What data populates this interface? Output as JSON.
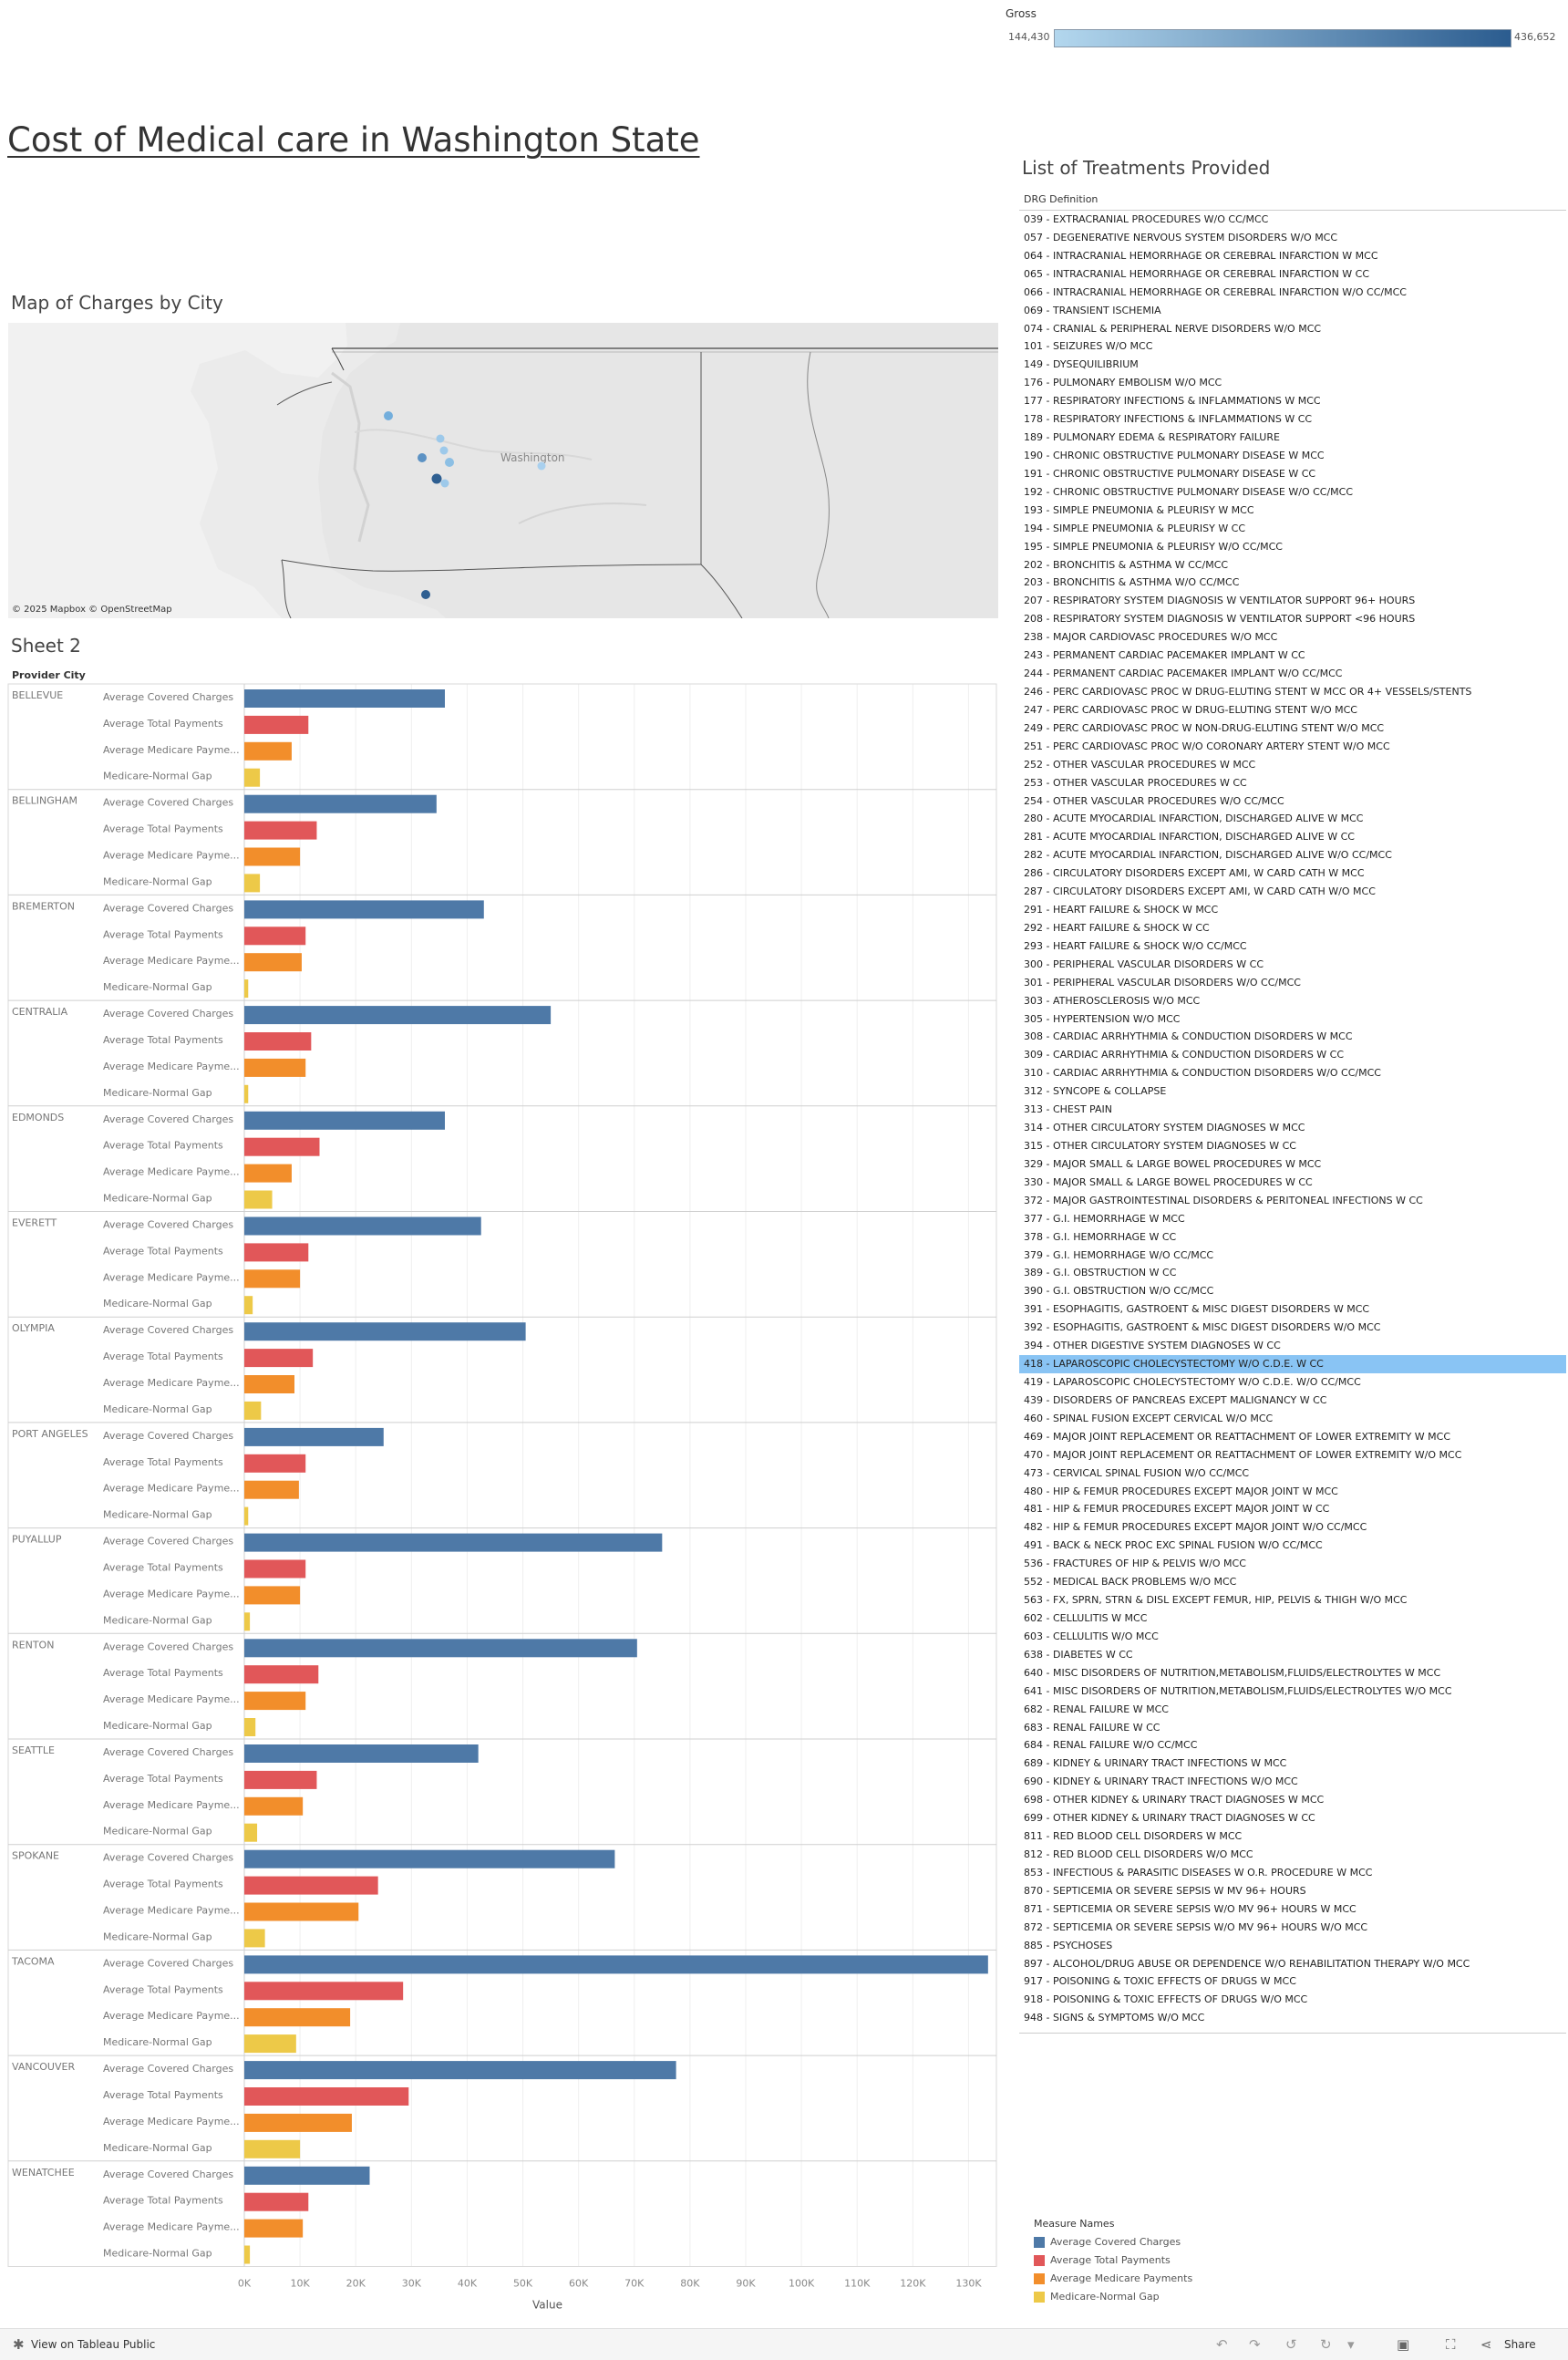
{
  "gross_legend": {
    "title": "Gross",
    "min": "144,430",
    "max": "436,652"
  },
  "title": "Cost of Medical care in Washington State",
  "map": {
    "title": "Map of Charges by City",
    "place_label": "Washington",
    "attribution": "© 2025 Mapbox  © OpenStreetMap"
  },
  "bar_sheet": {
    "title": "Sheet 2",
    "row_header": "Provider City"
  },
  "chart_data": {
    "type": "bar",
    "orientation": "horizontal",
    "categories": [
      "BELLEVUE",
      "BELLINGHAM",
      "BREMERTON",
      "CENTRALIA",
      "EDMONDS",
      "EVERETT",
      "OLYMPIA",
      "PORT ANGELES",
      "PUYALLUP",
      "RENTON",
      "SEATTLE",
      "SPOKANE",
      "TACOMA",
      "VANCOUVER",
      "WENATCHEE"
    ],
    "series": [
      {
        "name": "Average Covered Charges",
        "row_label": "Average Covered Charges",
        "color": "#4e79a7",
        "values": [
          36000,
          34500,
          43000,
          55000,
          36000,
          42500,
          50500,
          25000,
          75000,
          70500,
          42000,
          66500,
          133500,
          77500,
          22500
        ]
      },
      {
        "name": "Average Total Payments",
        "row_label": "Average Total Payments",
        "color": "#e15759",
        "values": [
          11500,
          13000,
          11000,
          12000,
          13500,
          11500,
          12300,
          11000,
          11000,
          13300,
          13000,
          24000,
          28500,
          29500,
          11500
        ]
      },
      {
        "name": "Average Medicare Payments",
        "row_label": "Average Medicare Payme...",
        "color": "#f28e2b",
        "values": [
          8500,
          10000,
          10300,
          11000,
          8500,
          10000,
          9000,
          9800,
          10000,
          11000,
          10500,
          20500,
          19000,
          19300,
          10500
        ]
      },
      {
        "name": "Medicare-Normal Gap",
        "row_label": "Medicare-Normal Gap",
        "color": "#edc948",
        "values": [
          2800,
          2800,
          700,
          700,
          5000,
          1500,
          3000,
          700,
          1000,
          2000,
          2300,
          3700,
          9300,
          10000,
          1000
        ]
      }
    ],
    "xlim": [
      0,
      135000
    ],
    "x_ticks": [
      "0K",
      "10K",
      "20K",
      "30K",
      "40K",
      "50K",
      "60K",
      "70K",
      "80K",
      "90K",
      "100K",
      "110K",
      "120K",
      "130K"
    ],
    "xlabel": "Value",
    "grid": true,
    "legend_position": "bottom-right"
  },
  "treatments": {
    "title": "List of Treatments Provided",
    "header": "DRG Definition",
    "selected_index": 63,
    "items": [
      "039 - EXTRACRANIAL PROCEDURES W/O CC/MCC",
      "057 - DEGENERATIVE NERVOUS SYSTEM DISORDERS W/O MCC",
      "064 - INTRACRANIAL HEMORRHAGE OR CEREBRAL INFARCTION W MCC",
      "065 - INTRACRANIAL HEMORRHAGE OR CEREBRAL INFARCTION W CC",
      "066 - INTRACRANIAL HEMORRHAGE OR CEREBRAL INFARCTION W/O CC/MCC",
      "069 - TRANSIENT ISCHEMIA",
      "074 - CRANIAL & PERIPHERAL NERVE DISORDERS W/O MCC",
      "101 - SEIZURES W/O MCC",
      "149 - DYSEQUILIBRIUM",
      "176 - PULMONARY EMBOLISM W/O MCC",
      "177 - RESPIRATORY INFECTIONS & INFLAMMATIONS W MCC",
      "178 - RESPIRATORY INFECTIONS & INFLAMMATIONS W CC",
      "189 - PULMONARY EDEMA & RESPIRATORY FAILURE",
      "190 - CHRONIC OBSTRUCTIVE PULMONARY DISEASE W MCC",
      "191 - CHRONIC OBSTRUCTIVE PULMONARY DISEASE W CC",
      "192 - CHRONIC OBSTRUCTIVE PULMONARY DISEASE W/O CC/MCC",
      "193 - SIMPLE PNEUMONIA & PLEURISY W MCC",
      "194 - SIMPLE PNEUMONIA & PLEURISY W CC",
      "195 - SIMPLE PNEUMONIA & PLEURISY W/O CC/MCC",
      "202 - BRONCHITIS & ASTHMA W CC/MCC",
      "203 - BRONCHITIS & ASTHMA W/O CC/MCC",
      "207 - RESPIRATORY SYSTEM DIAGNOSIS W VENTILATOR SUPPORT 96+ HOURS",
      "208 - RESPIRATORY SYSTEM DIAGNOSIS W VENTILATOR SUPPORT <96 HOURS",
      "238 - MAJOR CARDIOVASC PROCEDURES W/O MCC",
      "243 - PERMANENT CARDIAC PACEMAKER IMPLANT W CC",
      "244 - PERMANENT CARDIAC PACEMAKER IMPLANT W/O CC/MCC",
      "246 - PERC CARDIOVASC PROC W DRUG-ELUTING STENT W MCC OR 4+ VESSELS/STENTS",
      "247 - PERC CARDIOVASC PROC W DRUG-ELUTING STENT W/O MCC",
      "249 - PERC CARDIOVASC PROC W NON-DRUG-ELUTING STENT W/O MCC",
      "251 - PERC CARDIOVASC PROC W/O CORONARY ARTERY STENT W/O MCC",
      "252 - OTHER VASCULAR PROCEDURES W MCC",
      "253 - OTHER VASCULAR PROCEDURES W CC",
      "254 - OTHER VASCULAR PROCEDURES W/O CC/MCC",
      "280 - ACUTE MYOCARDIAL INFARCTION, DISCHARGED ALIVE W MCC",
      "281 - ACUTE MYOCARDIAL INFARCTION, DISCHARGED ALIVE W CC",
      "282 - ACUTE MYOCARDIAL INFARCTION, DISCHARGED ALIVE W/O CC/MCC",
      "286 - CIRCULATORY DISORDERS EXCEPT AMI, W CARD CATH W MCC",
      "287 - CIRCULATORY DISORDERS EXCEPT AMI, W CARD CATH W/O MCC",
      "291 - HEART FAILURE & SHOCK W MCC",
      "292 - HEART FAILURE & SHOCK W CC",
      "293 - HEART FAILURE & SHOCK W/O CC/MCC",
      "300 - PERIPHERAL VASCULAR DISORDERS W CC",
      "301 - PERIPHERAL VASCULAR DISORDERS W/O CC/MCC",
      "303 - ATHEROSCLEROSIS W/O MCC",
      "305 - HYPERTENSION W/O MCC",
      "308 - CARDIAC ARRHYTHMIA & CONDUCTION DISORDERS W MCC",
      "309 - CARDIAC ARRHYTHMIA & CONDUCTION DISORDERS W CC",
      "310 - CARDIAC ARRHYTHMIA & CONDUCTION DISORDERS W/O CC/MCC",
      "312 - SYNCOPE & COLLAPSE",
      "313 - CHEST PAIN",
      "314 - OTHER CIRCULATORY SYSTEM DIAGNOSES W MCC",
      "315 - OTHER CIRCULATORY SYSTEM DIAGNOSES W CC",
      "329 - MAJOR SMALL & LARGE BOWEL PROCEDURES W MCC",
      "330 - MAJOR SMALL & LARGE BOWEL PROCEDURES W CC",
      "372 - MAJOR GASTROINTESTINAL DISORDERS & PERITONEAL INFECTIONS W CC",
      "377 - G.I. HEMORRHAGE W MCC",
      "378 - G.I. HEMORRHAGE W CC",
      "379 - G.I. HEMORRHAGE W/O CC/MCC",
      "389 - G.I. OBSTRUCTION W CC",
      "390 - G.I. OBSTRUCTION W/O CC/MCC",
      "391 - ESOPHAGITIS, GASTROENT & MISC DIGEST DISORDERS W MCC",
      "392 - ESOPHAGITIS, GASTROENT & MISC DIGEST DISORDERS W/O MCC",
      "394 - OTHER DIGESTIVE SYSTEM DIAGNOSES W CC",
      "418 - LAPAROSCOPIC CHOLECYSTECTOMY W/O C.D.E. W CC",
      "419 - LAPAROSCOPIC CHOLECYSTECTOMY W/O C.D.E. W/O CC/MCC",
      "439 - DISORDERS OF PANCREAS EXCEPT MALIGNANCY W CC",
      "460 - SPINAL FUSION EXCEPT CERVICAL W/O MCC",
      "469 - MAJOR JOINT REPLACEMENT OR REATTACHMENT OF LOWER EXTREMITY W MCC",
      "470 - MAJOR JOINT REPLACEMENT OR REATTACHMENT OF LOWER EXTREMITY W/O MCC",
      "473 - CERVICAL SPINAL FUSION W/O CC/MCC",
      "480 - HIP & FEMUR PROCEDURES EXCEPT MAJOR JOINT W MCC",
      "481 - HIP & FEMUR PROCEDURES EXCEPT MAJOR JOINT W CC",
      "482 - HIP & FEMUR PROCEDURES EXCEPT MAJOR JOINT W/O CC/MCC",
      "491 - BACK & NECK PROC EXC SPINAL FUSION W/O CC/MCC",
      "536 - FRACTURES OF HIP & PELVIS W/O MCC",
      "552 - MEDICAL BACK PROBLEMS W/O MCC",
      "563 - FX, SPRN, STRN & DISL EXCEPT FEMUR, HIP, PELVIS & THIGH W/O MCC",
      "602 - CELLULITIS W MCC",
      "603 - CELLULITIS W/O MCC",
      "638 - DIABETES W CC",
      "640 - MISC DISORDERS OF NUTRITION,METABOLISM,FLUIDS/ELECTROLYTES W MCC",
      "641 - MISC DISORDERS OF NUTRITION,METABOLISM,FLUIDS/ELECTROLYTES W/O MCC",
      "682 - RENAL FAILURE W MCC",
      "683 - RENAL FAILURE W CC",
      "684 - RENAL FAILURE W/O CC/MCC",
      "689 - KIDNEY & URINARY TRACT INFECTIONS W MCC",
      "690 - KIDNEY & URINARY TRACT INFECTIONS W/O MCC",
      "698 - OTHER KIDNEY & URINARY TRACT DIAGNOSES W MCC",
      "699 - OTHER KIDNEY & URINARY TRACT DIAGNOSES W CC",
      "811 - RED BLOOD CELL DISORDERS W MCC",
      "812 - RED BLOOD CELL DISORDERS W/O MCC",
      "853 - INFECTIOUS & PARASITIC DISEASES W O.R. PROCEDURE W MCC",
      "870 - SEPTICEMIA OR SEVERE SEPSIS W MV 96+ HOURS",
      "871 - SEPTICEMIA OR SEVERE SEPSIS W/O MV 96+ HOURS W MCC",
      "872 - SEPTICEMIA OR SEVERE SEPSIS W/O MV 96+ HOURS W/O MCC",
      "885 - PSYCHOSES",
      "897 - ALCOHOL/DRUG ABUSE OR DEPENDENCE W/O REHABILITATION THERAPY W/O MCC",
      "917 - POISONING & TOXIC EFFECTS OF DRUGS W MCC",
      "918 - POISONING & TOXIC EFFECTS OF DRUGS W/O MCC",
      "948 - SIGNS & SYMPTOMS W/O MCC"
    ]
  },
  "measure_legend": {
    "title": "Measure Names",
    "items": [
      {
        "label": "Average Covered Charges",
        "color": "#4e79a7"
      },
      {
        "label": "Average Total Payments",
        "color": "#e15759"
      },
      {
        "label": "Average Medicare Payments",
        "color": "#f28e2b"
      },
      {
        "label": "Medicare-Normal Gap",
        "color": "#edc948"
      }
    ]
  },
  "footer": {
    "tableau_link": "View on Tableau Public",
    "share": "Share"
  }
}
